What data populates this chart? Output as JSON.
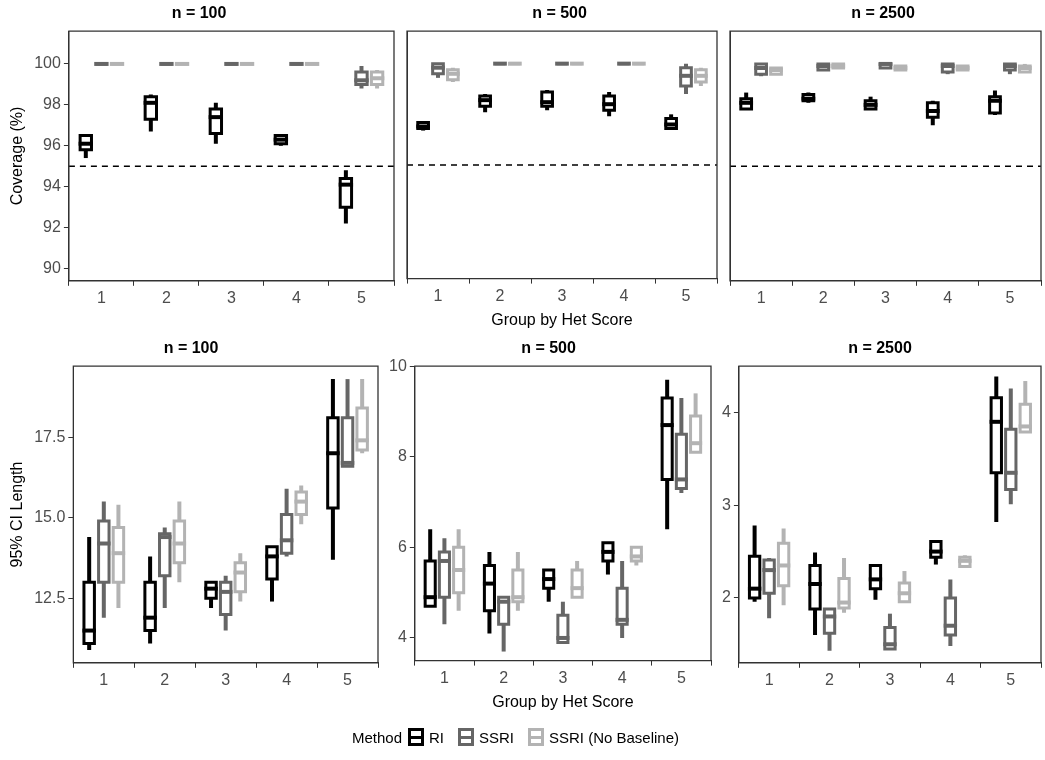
{
  "chart_data": [
    {
      "type": "box",
      "title": "n = 100",
      "ylabel": "Coverage (%)",
      "categories": [
        "1",
        "2",
        "3",
        "4",
        "5"
      ],
      "ylim": [
        89.4,
        101.6
      ],
      "yticks": [
        90,
        92,
        94,
        96,
        98,
        100
      ],
      "legend": "bottom",
      "legend_title": "Method",
      "ref_lines": [
        {
          "axis": "y",
          "value": 95,
          "line_style": "dashed",
          "color": "#000000"
        }
      ],
      "series": [
        {
          "name": "RI",
          "color": "#000000",
          "boxes": [
            {
              "low": 95.4,
              "q1": 95.8,
              "median": 96.1,
              "q3": 96.5,
              "high": 96.5
            },
            {
              "low": 96.7,
              "q1": 97.3,
              "median": 98.1,
              "q3": 98.4,
              "high": 98.5
            },
            {
              "low": 96.1,
              "q1": 96.6,
              "median": 97.4,
              "q3": 97.8,
              "high": 98.1
            },
            {
              "low": 96.0,
              "q1": 96.1,
              "median": 96.3,
              "q3": 96.5,
              "high": 96.5
            },
            {
              "low": 92.2,
              "q1": 93.0,
              "median": 94.1,
              "q3": 94.4,
              "high": 94.8
            }
          ]
        },
        {
          "name": "SSRI",
          "color": "#666666",
          "boxes": [
            {
              "low": 100,
              "q1": 100,
              "median": 100,
              "q3": 100,
              "high": 100
            },
            {
              "low": 100,
              "q1": 100,
              "median": 100,
              "q3": 100,
              "high": 100
            },
            {
              "low": 100,
              "q1": 100,
              "median": 100,
              "q3": 100,
              "high": 100
            },
            {
              "low": 100,
              "q1": 100,
              "median": 100,
              "q3": 100,
              "high": 100
            },
            {
              "low": 98.8,
              "q1": 99.0,
              "median": 99.2,
              "q3": 99.6,
              "high": 99.9
            }
          ]
        },
        {
          "name": "SSRI (No Baseline)",
          "color": "#b3b3b3",
          "boxes": [
            {
              "low": 100,
              "q1": 100,
              "median": 100,
              "q3": 100,
              "high": 100
            },
            {
              "low": 100,
              "q1": 100,
              "median": 100,
              "q3": 100,
              "high": 100
            },
            {
              "low": 100,
              "q1": 100,
              "median": 100,
              "q3": 100,
              "high": 100
            },
            {
              "low": 100,
              "q1": 100,
              "median": 100,
              "q3": 100,
              "high": 100
            },
            {
              "low": 98.8,
              "q1": 99.0,
              "median": 99.3,
              "q3": 99.6,
              "high": 99.7
            }
          ]
        }
      ]
    },
    {
      "type": "box",
      "title": "n = 500",
      "xlabel": "Group by Het Score",
      "categories": [
        "1",
        "2",
        "3",
        "4",
        "5"
      ],
      "ylim": [
        89.4,
        101.6
      ],
      "yticks": [
        90,
        92,
        94,
        96,
        98,
        100
      ],
      "tick_labels": "x",
      "ref_lines": [
        {
          "axis": "y",
          "value": 95,
          "line_style": "dashed",
          "color": "#000000"
        }
      ],
      "series": [
        {
          "color": "#000000",
          "boxes": [
            {
              "low": 96.7,
              "q1": 96.8,
              "median": 96.9,
              "q3": 97.1,
              "high": 97.1
            },
            {
              "low": 97.6,
              "q1": 97.9,
              "median": 98.2,
              "q3": 98.4,
              "high": 98.5
            },
            {
              "low": 97.7,
              "q1": 97.9,
              "median": 98.1,
              "q3": 98.6,
              "high": 98.7
            },
            {
              "low": 97.4,
              "q1": 97.7,
              "median": 98.0,
              "q3": 98.4,
              "high": 98.6
            },
            {
              "low": 96.8,
              "q1": 96.8,
              "median": 97.0,
              "q3": 97.3,
              "high": 97.5
            }
          ]
        },
        {
          "color": "#666666",
          "boxes": [
            {
              "low": 99.3,
              "q1": 99.5,
              "median": 99.8,
              "q3": 100,
              "high": 100
            },
            {
              "low": 100,
              "q1": 100,
              "median": 100,
              "q3": 100,
              "high": 100
            },
            {
              "low": 100,
              "q1": 100,
              "median": 100,
              "q3": 100,
              "high": 100
            },
            {
              "low": 100,
              "q1": 100,
              "median": 100,
              "q3": 100,
              "high": 100
            },
            {
              "low": 98.5,
              "q1": 98.9,
              "median": 99.4,
              "q3": 99.8,
              "high": 100
            }
          ]
        },
        {
          "color": "#b3b3b3",
          "boxes": [
            {
              "low": 99.1,
              "q1": 99.2,
              "median": 99.5,
              "q3": 99.7,
              "high": 99.8
            },
            {
              "low": 100,
              "q1": 100,
              "median": 100,
              "q3": 100,
              "high": 100
            },
            {
              "low": 100,
              "q1": 100,
              "median": 100,
              "q3": 100,
              "high": 100
            },
            {
              "low": 100,
              "q1": 100,
              "median": 100,
              "q3": 100,
              "high": 100
            },
            {
              "low": 98.9,
              "q1": 99.1,
              "median": 99.4,
              "q3": 99.7,
              "high": 99.8
            }
          ]
        }
      ]
    },
    {
      "type": "box",
      "title": "n = 2500",
      "categories": [
        "1",
        "2",
        "3",
        "4",
        "5"
      ],
      "ylim": [
        89.4,
        101.6
      ],
      "yticks": [
        90,
        92,
        94,
        96,
        98,
        100
      ],
      "tick_labels": "x",
      "ref_lines": [
        {
          "axis": "y",
          "value": 95,
          "line_style": "dashed",
          "color": "#000000"
        }
      ],
      "series": [
        {
          "color": "#000000",
          "boxes": [
            {
              "low": 97.8,
              "q1": 97.8,
              "median": 98.1,
              "q3": 98.3,
              "high": 98.6
            },
            {
              "low": 98.1,
              "q1": 98.2,
              "median": 98.3,
              "q3": 98.5,
              "high": 98.6
            },
            {
              "low": 97.8,
              "q1": 97.8,
              "median": 98.0,
              "q3": 98.2,
              "high": 98.4
            },
            {
              "low": 97.0,
              "q1": 97.4,
              "median": 97.7,
              "q3": 98.1,
              "high": 98.2
            },
            {
              "low": 97.5,
              "q1": 97.6,
              "median": 98.2,
              "q3": 98.4,
              "high": 98.7
            }
          ]
        },
        {
          "color": "#666666",
          "boxes": [
            {
              "low": 99.4,
              "q1": 99.5,
              "median": 99.8,
              "q3": 100,
              "high": 100
            },
            {
              "low": 99.7,
              "q1": 99.7,
              "median": 99.9,
              "q3": 100,
              "high": 100
            },
            {
              "low": 99.8,
              "q1": 99.8,
              "median": 100,
              "q3": 100,
              "high": 100
            },
            {
              "low": 99.5,
              "q1": 99.6,
              "median": 99.9,
              "q3": 100,
              "high": 100
            },
            {
              "low": 99.5,
              "q1": 99.7,
              "median": 99.9,
              "q3": 100,
              "high": 100
            }
          ]
        },
        {
          "color": "#b3b3b3",
          "boxes": [
            {
              "low": 99.5,
              "q1": 99.5,
              "median": 99.7,
              "q3": 99.8,
              "high": 99.8
            },
            {
              "low": 99.8,
              "q1": 99.8,
              "median": 99.9,
              "q3": 100,
              "high": 100
            },
            {
              "low": 99.7,
              "q1": 99.7,
              "median": 99.8,
              "q3": 99.9,
              "high": 99.9
            },
            {
              "low": 99.7,
              "q1": 99.7,
              "median": 99.8,
              "q3": 99.9,
              "high": 99.9
            },
            {
              "low": 99.6,
              "q1": 99.6,
              "median": 99.8,
              "q3": 99.9,
              "high": 100
            }
          ]
        }
      ]
    },
    {
      "type": "box",
      "title": "n = 100",
      "ylabel": "95% CI Length",
      "categories": [
        "1",
        "2",
        "3",
        "4",
        "5"
      ],
      "ylim": [
        10.5,
        19.7
      ],
      "yticks": [
        12.5,
        {
          "value": 15,
          "label": "15.0"
        },
        17.5
      ],
      "series": [
        {
          "color": "#000000",
          "boxes": [
            {
              "low": 10.9,
              "q1": 11.1,
              "median": 11.5,
              "q3": 13.0,
              "high": 14.4
            },
            {
              "low": 11.1,
              "q1": 11.5,
              "median": 11.9,
              "q3": 13.0,
              "high": 13.8
            },
            {
              "low": 12.2,
              "q1": 12.5,
              "median": 12.8,
              "q3": 13.0,
              "high": 13.0
            },
            {
              "low": 12.4,
              "q1": 13.1,
              "median": 13.8,
              "q3": 14.1,
              "high": 14.1
            },
            {
              "low": 13.7,
              "q1": 15.3,
              "median": 17.0,
              "q3": 18.1,
              "high": 19.3
            }
          ]
        },
        {
          "color": "#666666",
          "boxes": [
            {
              "low": 11.9,
              "q1": 13.0,
              "median": 14.2,
              "q3": 14.9,
              "high": 15.5
            },
            {
              "low": 12.2,
              "q1": 13.2,
              "median": 14.4,
              "q3": 14.5,
              "high": 14.7
            },
            {
              "low": 11.5,
              "q1": 12.0,
              "median": 12.7,
              "q3": 13.0,
              "high": 13.2
            },
            {
              "low": 13.8,
              "q1": 13.9,
              "median": 14.3,
              "q3": 15.1,
              "high": 15.9
            },
            {
              "low": 16.6,
              "q1": 16.6,
              "median": 16.7,
              "q3": 18.1,
              "high": 19.3
            }
          ]
        },
        {
          "color": "#b3b3b3",
          "boxes": [
            {
              "low": 12.2,
              "q1": 13.0,
              "median": 13.9,
              "q3": 14.7,
              "high": 15.4
            },
            {
              "low": 13.0,
              "q1": 13.6,
              "median": 14.2,
              "q3": 14.9,
              "high": 15.5
            },
            {
              "low": 12.4,
              "q1": 12.7,
              "median": 13.3,
              "q3": 13.6,
              "high": 13.9
            },
            {
              "low": 14.8,
              "q1": 15.1,
              "median": 15.5,
              "q3": 15.8,
              "high": 16.0
            },
            {
              "low": 17.0,
              "q1": 17.1,
              "median": 17.4,
              "q3": 18.4,
              "high": 19.3
            }
          ]
        }
      ]
    },
    {
      "type": "box",
      "title": "n = 500",
      "xlabel": "Group by Het Score",
      "categories": [
        "1",
        "2",
        "3",
        "4",
        "5"
      ],
      "ylim": [
        3.5,
        10
      ],
      "yticks": [
        4,
        6,
        8,
        10
      ],
      "series": [
        {
          "color": "#000000",
          "boxes": [
            {
              "low": 4.7,
              "q1": 4.7,
              "median": 4.9,
              "q3": 5.7,
              "high": 6.4
            },
            {
              "low": 4.1,
              "q1": 4.6,
              "median": 5.2,
              "q3": 5.6,
              "high": 5.9
            },
            {
              "low": 4.8,
              "q1": 5.1,
              "median": 5.3,
              "q3": 5.5,
              "high": 5.5
            },
            {
              "low": 5.4,
              "q1": 5.7,
              "median": 5.9,
              "q3": 6.1,
              "high": 6.1
            },
            {
              "low": 6.4,
              "q1": 7.5,
              "median": 8.7,
              "q3": 9.3,
              "high": 9.7
            }
          ]
        },
        {
          "color": "#666666",
          "boxes": [
            {
              "low": 4.3,
              "q1": 4.9,
              "median": 5.7,
              "q3": 5.9,
              "high": 6.2
            },
            {
              "low": 3.7,
              "q1": 4.3,
              "median": 4.8,
              "q3": 4.9,
              "high": 4.9
            },
            {
              "low": 3.9,
              "q1": 3.9,
              "median": 4.0,
              "q3": 4.5,
              "high": 4.8
            },
            {
              "low": 4.0,
              "q1": 4.3,
              "median": 4.4,
              "q3": 5.1,
              "high": 5.7
            },
            {
              "low": 7.2,
              "q1": 7.3,
              "median": 7.5,
              "q3": 8.5,
              "high": 9.3
            }
          ]
        },
        {
          "color": "#b3b3b3",
          "boxes": [
            {
              "low": 4.6,
              "q1": 5.0,
              "median": 5.5,
              "q3": 6.0,
              "high": 6.4
            },
            {
              "low": 4.6,
              "q1": 4.8,
              "median": 4.9,
              "q3": 5.5,
              "high": 5.9
            },
            {
              "low": 4.9,
              "q1": 4.9,
              "median": 5.1,
              "q3": 5.5,
              "high": 5.7
            },
            {
              "low": 5.6,
              "q1": 5.7,
              "median": 5.8,
              "q3": 6.0,
              "high": 6.0
            },
            {
              "low": 8.1,
              "q1": 8.1,
              "median": 8.3,
              "q3": 8.9,
              "high": 9.4
            }
          ]
        }
      ]
    },
    {
      "type": "box",
      "title": "n = 2500",
      "categories": [
        "1",
        "2",
        "3",
        "4",
        "5"
      ],
      "ylim": [
        1.3,
        4.5
      ],
      "yticks": [
        2,
        3,
        4
      ],
      "series": [
        {
          "color": "#000000",
          "boxes": [
            {
              "low": 1.96,
              "q1": 2.0,
              "median": 2.1,
              "q3": 2.45,
              "high": 2.78
            },
            {
              "low": 1.6,
              "q1": 1.88,
              "median": 2.15,
              "q3": 2.35,
              "high": 2.49
            },
            {
              "low": 1.98,
              "q1": 2.1,
              "median": 2.2,
              "q3": 2.35,
              "high": 2.35
            },
            {
              "low": 2.36,
              "q1": 2.44,
              "median": 2.5,
              "q3": 2.61,
              "high": 2.61
            },
            {
              "low": 2.82,
              "q1": 3.35,
              "median": 3.9,
              "q3": 4.16,
              "high": 4.39
            }
          ]
        },
        {
          "color": "#666666",
          "boxes": [
            {
              "low": 1.78,
              "q1": 2.05,
              "median": 2.3,
              "q3": 2.41,
              "high": 2.43
            },
            {
              "low": 1.43,
              "q1": 1.62,
              "median": 1.8,
              "q3": 1.88,
              "high": 1.88
            },
            {
              "low": 1.45,
              "q1": 1.45,
              "median": 1.5,
              "q3": 1.68,
              "high": 1.83
            },
            {
              "low": 1.48,
              "q1": 1.6,
              "median": 1.7,
              "q3": 2.0,
              "high": 2.2
            },
            {
              "low": 3.01,
              "q1": 3.17,
              "median": 3.35,
              "q3": 3.82,
              "high": 4.26
            }
          ]
        },
        {
          "color": "#b3b3b3",
          "boxes": [
            {
              "low": 1.92,
              "q1": 2.13,
              "median": 2.35,
              "q3": 2.59,
              "high": 2.75
            },
            {
              "low": 1.84,
              "q1": 1.89,
              "median": 1.95,
              "q3": 2.21,
              "high": 2.43
            },
            {
              "low": 1.96,
              "q1": 1.96,
              "median": 2.05,
              "q3": 2.16,
              "high": 2.29
            },
            {
              "low": 2.34,
              "q1": 2.34,
              "median": 2.4,
              "q3": 2.44,
              "high": 2.46
            },
            {
              "low": 3.79,
              "q1": 3.79,
              "median": 3.85,
              "q3": 4.09,
              "high": 4.34
            }
          ]
        }
      ]
    }
  ]
}
